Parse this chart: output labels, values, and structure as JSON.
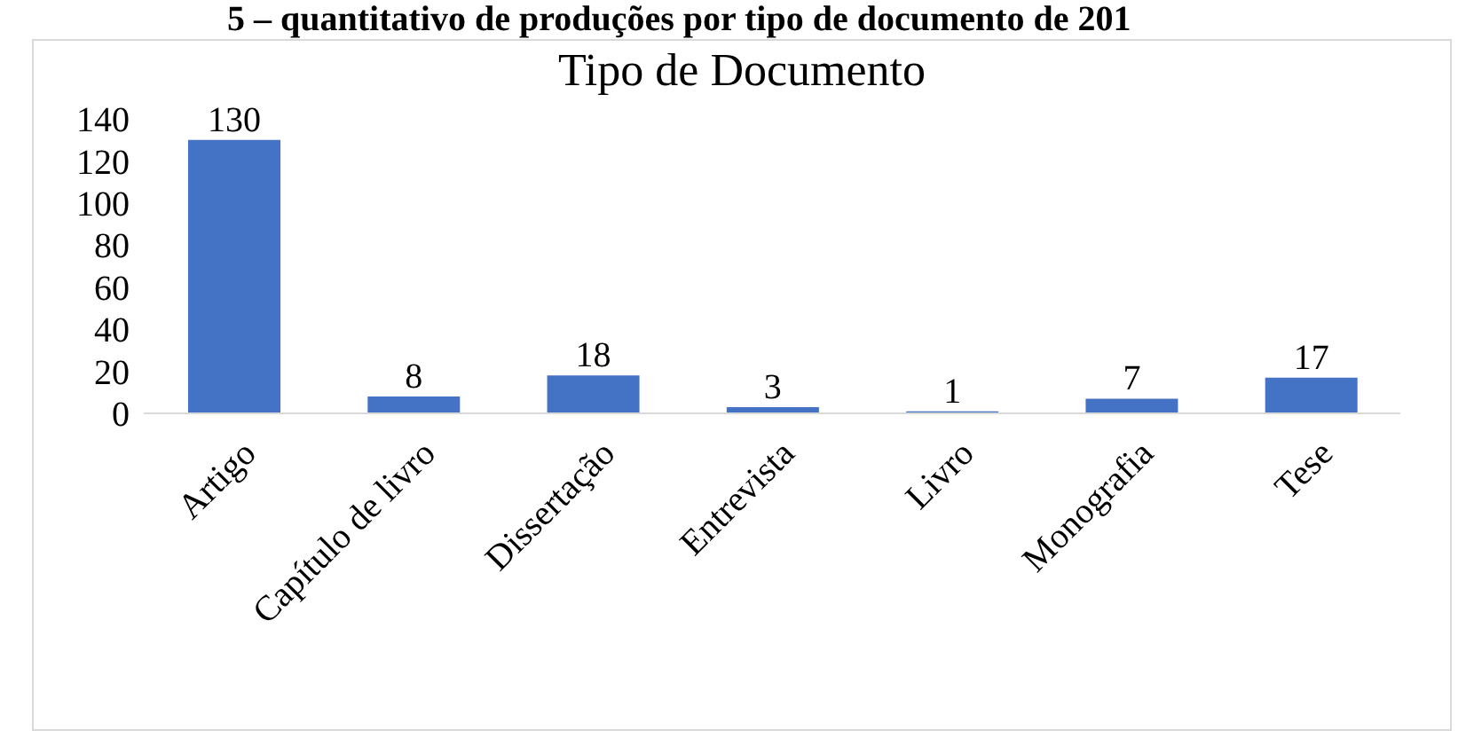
{
  "chart_data": {
    "type": "bar",
    "title": "Tipo de Documento",
    "annotations": [
      "5 – quantitativo de produções por tipo de documento de 201"
    ],
    "categories": [
      "Artigo",
      "Capítulo de livro",
      "Dissertação",
      "Entrevista",
      "Livro",
      "Monografia",
      "Tese"
    ],
    "values": [
      130,
      8,
      18,
      3,
      1,
      7,
      17
    ],
    "color": "#4472c4",
    "ylim": [
      0,
      140
    ],
    "yticks": [
      0,
      20,
      40,
      60,
      80,
      100,
      120,
      140
    ],
    "grid": false,
    "data_labels": true
  }
}
